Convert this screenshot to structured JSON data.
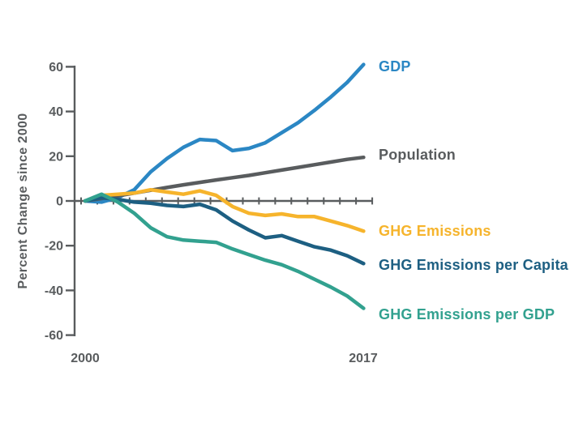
{
  "page": {
    "background_color": "#ffffff",
    "axis_color": "#595c5e"
  },
  "chart_data": {
    "type": "line",
    "title": "",
    "xlabel": "",
    "ylabel": "Percent Change since 2000",
    "x": [
      2000,
      2001,
      2002,
      2003,
      2004,
      2005,
      2006,
      2007,
      2008,
      2009,
      2010,
      2011,
      2012,
      2013,
      2014,
      2015,
      2016,
      2017
    ],
    "xlim": [
      2000,
      2017
    ],
    "ylim": [
      -60,
      60
    ],
    "yticks": [
      60,
      40,
      20,
      0,
      -20,
      -40,
      -60
    ],
    "xtick_labels": [
      "2000",
      "2017"
    ],
    "grid": false,
    "legend_position": "right-of-line-ends",
    "axis_color": "#595c5e",
    "series": [
      {
        "name": "GDP",
        "color": "#2b87c4",
        "values": [
          0,
          -0.5,
          1.5,
          5,
          13,
          19,
          24,
          27.5,
          27,
          22.5,
          23.5,
          26,
          30.5,
          35,
          40.5,
          46.5,
          53,
          61
        ]
      },
      {
        "name": "Population",
        "color": "#595c5e",
        "values": [
          0,
          1.1,
          2.3,
          3.5,
          4.8,
          6,
          7.2,
          8.3,
          9.4,
          10.4,
          11.4,
          12.6,
          13.8,
          15,
          16.2,
          17.4,
          18.6,
          19.5
        ]
      },
      {
        "name": "GHG Emissions",
        "color": "#f6b42c",
        "values": [
          0,
          2.5,
          3,
          3.5,
          5,
          4,
          3,
          4.5,
          2.5,
          -2.5,
          -5.5,
          -6.5,
          -5.8,
          -7,
          -7,
          -9,
          -11,
          -13.5
        ]
      },
      {
        "name": "GHG Emissions per Capita",
        "color": "#1d5f82",
        "values": [
          0,
          1.4,
          0.7,
          -0.5,
          -1,
          -2,
          -2.5,
          -1.5,
          -4,
          -9,
          -13,
          -16.5,
          -15.5,
          -18,
          -20.5,
          -22,
          -24.5,
          -28
        ]
      },
      {
        "name": "GHG Emissions per GDP",
        "color": "#32a18f",
        "values": [
          0,
          3,
          -0.5,
          -5.5,
          -12,
          -16,
          -17.5,
          -18,
          -18.5,
          -21.5,
          -24,
          -26.5,
          -28.5,
          -31.5,
          -35,
          -38.5,
          -42.5,
          -48
        ]
      }
    ]
  }
}
